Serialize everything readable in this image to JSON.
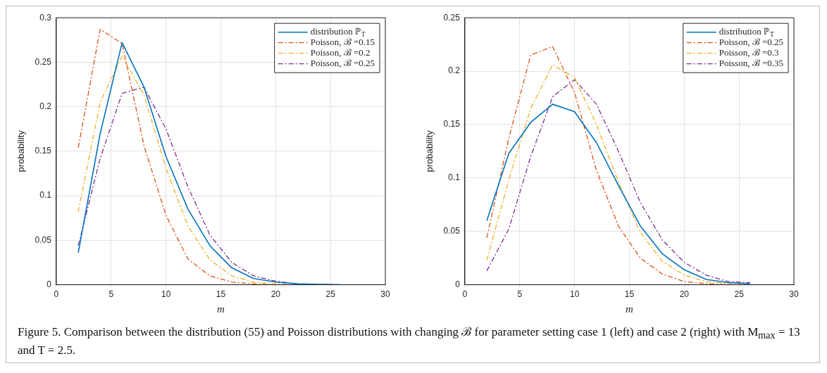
{
  "chart_data": [
    {
      "type": "line",
      "x": [
        2,
        4,
        6,
        8,
        10,
        12,
        14,
        16,
        18,
        20,
        22,
        24,
        26
      ],
      "xlabel": "m",
      "ylabel": "probability",
      "xlim": [
        0,
        30
      ],
      "xticks": [
        0,
        5,
        10,
        15,
        20,
        25,
        30
      ],
      "ylim": [
        0,
        0.3
      ],
      "yticks": [
        0,
        0.05,
        0.1,
        0.15,
        0.2,
        0.25,
        0.3
      ],
      "grid": true,
      "legend": "top right",
      "series": [
        {
          "name": "distribution ℙ$_{T}$",
          "color": "#0072bd",
          "line_style": "solid",
          "values": [
            0.036,
            0.17,
            0.272,
            0.222,
            0.144,
            0.085,
            0.044,
            0.019,
            0.007,
            0.003,
            0.001,
            0.0005,
            0
          ]
        },
        {
          "name": "Poisson, ℬ =0.15",
          "color": "#d95319",
          "line_style": "dashed",
          "values": [
            0.154,
            0.287,
            0.271,
            0.156,
            0.078,
            0.029,
            0.01,
            0.003,
            0.001,
            0,
            0,
            null,
            null
          ]
        },
        {
          "name": "Poisson, ℬ =0.2",
          "color": "#edb120",
          "line_style": "dashed",
          "values": [
            0.082,
            0.205,
            0.257,
            0.213,
            0.131,
            0.066,
            0.028,
            0.01,
            0.003,
            0.001,
            0,
            0,
            0
          ]
        },
        {
          "name": "Poisson, ℬ =0.25",
          "color": "#7e2f8e",
          "line_style": "dashed",
          "values": [
            0.044,
            0.142,
            0.215,
            0.222,
            0.175,
            0.11,
            0.056,
            0.025,
            0.01,
            0.004,
            0.001,
            0.0005,
            0
          ]
        }
      ],
      "annotations": [
        "Figure 5. Comparison between the distribution (55) and Poisson distributions with changing ℬ for parameter setting case 1 (left) and case 2 (right) with M$_{max}$ = 13 and T = 2.5."
      ]
    },
    {
      "type": "line",
      "x": [
        2,
        4,
        6,
        8,
        10,
        12,
        14,
        16,
        18,
        20,
        22,
        24,
        26
      ],
      "xlabel": "m",
      "ylabel": "probability",
      "xlim": [
        0,
        30
      ],
      "xticks": [
        0,
        5,
        10,
        15,
        20,
        25,
        30
      ],
      "ylim": [
        0,
        0.25
      ],
      "yticks": [
        0,
        0.05,
        0.1,
        0.15,
        0.2,
        0.25
      ],
      "grid": true,
      "legend": "top right",
      "series": [
        {
          "name": "distribution ℙ$_{T}$",
          "color": "#0072bd",
          "line_style": "solid",
          "values": [
            0.06,
            0.123,
            0.152,
            0.169,
            0.162,
            0.133,
            0.093,
            0.055,
            0.029,
            0.014,
            0.005,
            0.002,
            0.001
          ]
        },
        {
          "name": "Poisson, ℬ =0.25",
          "color": "#d95319",
          "line_style": "dashed",
          "values": [
            0.044,
            0.137,
            0.215,
            0.223,
            0.18,
            0.107,
            0.055,
            0.025,
            0.01,
            0.003,
            0.001,
            0,
            0
          ]
        },
        {
          "name": "Poisson, ℬ =0.3",
          "color": "#edb120",
          "line_style": "dashed",
          "values": [
            0.023,
            0.098,
            0.165,
            0.206,
            0.194,
            0.15,
            0.096,
            0.049,
            0.022,
            0.009,
            0.003,
            0.001,
            0
          ]
        },
        {
          "name": "Poisson, ℬ =0.35",
          "color": "#7e2f8e",
          "line_style": "dashed",
          "values": [
            0.013,
            0.052,
            0.12,
            0.176,
            0.192,
            0.169,
            0.125,
            0.077,
            0.042,
            0.021,
            0.009,
            0.003,
            0.002
          ]
        }
      ]
    }
  ]
}
